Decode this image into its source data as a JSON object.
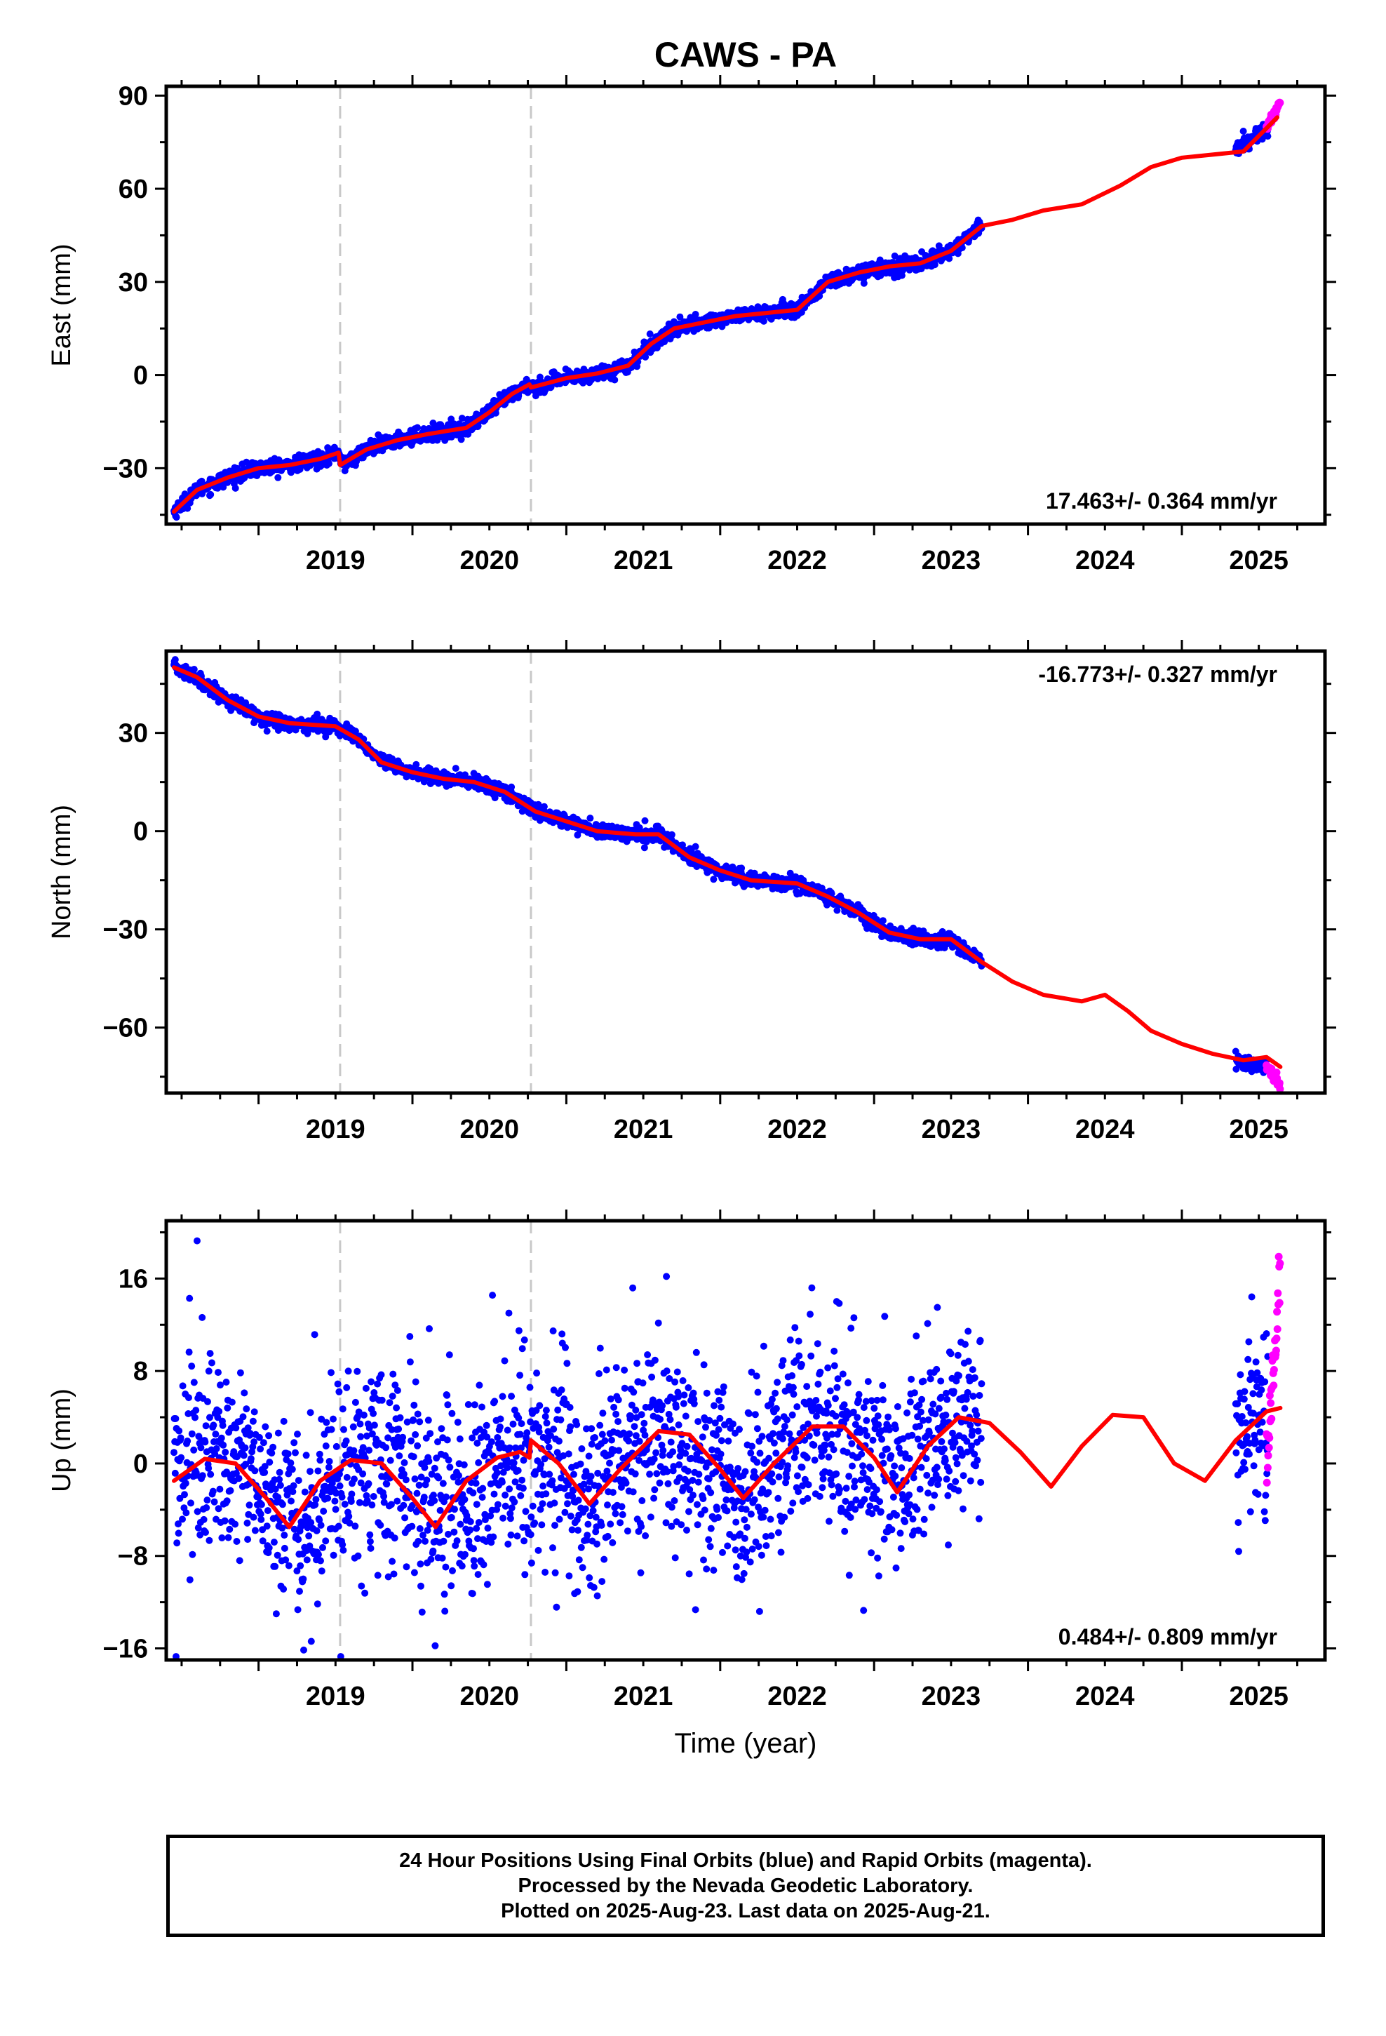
{
  "title": "CAWS - PA",
  "colors": {
    "final_orbits": "#0000ff",
    "rapid_orbits": "#ff00ff",
    "model": "#ff0000",
    "breaks": "#c8c8c8",
    "axis": "#000000"
  },
  "caption": {
    "line1": "24 Hour Positions Using Final Orbits (blue) and Rapid Orbits (magenta).",
    "line2": "Processed by the Nevada Geodetic Laboratory.",
    "line3": "Plotted on 2025-Aug-23. Last data on 2025-Aug-21."
  },
  "chart_data": [
    {
      "type": "scatter",
      "component": "East",
      "ylabel": "East (mm)",
      "xlabel": "",
      "xlim": [
        2018.4,
        2025.93
      ],
      "ylim": [
        -48,
        93
      ],
      "yticks": [
        -30,
        0,
        30,
        60,
        90
      ],
      "xticks": [
        2019,
        2020,
        2021,
        2022,
        2023,
        2024,
        2025
      ],
      "rate_label": "17.463+/- 0.364 mm/yr",
      "rate_position": "bottom-right",
      "grid": false,
      "breaks": [
        2019.53,
        2020.77
      ],
      "final_span": [
        2018.45,
        2023.7
      ],
      "rapid_span": [
        2025.55,
        2025.64
      ],
      "model": {
        "x": [
          2018.45,
          2018.6,
          2018.8,
          2019.0,
          2019.2,
          2019.4,
          2019.52,
          2019.53,
          2019.7,
          2019.9,
          2020.1,
          2020.35,
          2020.5,
          2020.65,
          2020.76,
          2020.77,
          2021.0,
          2021.2,
          2021.4,
          2021.55,
          2021.7,
          2021.9,
          2022.1,
          2022.3,
          2022.5,
          2022.7,
          2022.9,
          2023.1,
          2023.3,
          2023.5,
          2023.7,
          2023.9,
          2024.1,
          2024.35,
          2024.6,
          2024.8,
          2025.0,
          2025.2,
          2025.4,
          2025.62
        ],
        "y": [
          -44,
          -37,
          -33,
          -30,
          -29,
          -27,
          -25,
          -29,
          -24,
          -21,
          -19,
          -17,
          -12,
          -6,
          -3,
          -4,
          -1,
          0.5,
          3,
          10,
          15,
          17,
          19,
          20,
          21,
          30,
          33,
          35,
          36,
          40,
          48,
          50,
          53,
          55,
          61,
          67,
          70,
          71,
          72,
          83
        ]
      },
      "final": {
        "x": [
          2018.45,
          2018.6,
          2018.8,
          2019.0,
          2019.2,
          2019.4,
          2019.52,
          2019.55,
          2019.7,
          2019.9,
          2020.1,
          2020.35,
          2020.5,
          2020.65,
          2020.76,
          2020.8,
          2021.0,
          2021.2,
          2021.4,
          2021.55,
          2021.7,
          2021.9,
          2022.1,
          2022.3,
          2022.5,
          2022.7,
          2022.9,
          2023.1,
          2023.3,
          2023.5,
          2023.7,
          2025.35,
          2025.45,
          2025.55
        ],
        "y": [
          -44,
          -37,
          -33,
          -30,
          -29,
          -27,
          -25,
          -29,
          -24,
          -21,
          -19,
          -17,
          -12,
          -6,
          -3,
          -4,
          -1,
          0.5,
          3,
          10,
          15,
          17,
          19,
          20,
          21,
          30,
          33,
          35,
          36,
          40,
          48,
          73,
          76,
          79
        ]
      },
      "rapid": {
        "x": [
          2025.55,
          2025.6,
          2025.64
        ],
        "y": [
          80,
          84,
          88
        ]
      }
    },
    {
      "type": "scatter",
      "component": "North",
      "ylabel": "North (mm)",
      "xlabel": "",
      "xlim": [
        2018.4,
        2025.93
      ],
      "ylim": [
        -80,
        55
      ],
      "yticks": [
        -60,
        -30,
        0,
        30
      ],
      "xticks": [
        2019,
        2020,
        2021,
        2022,
        2023,
        2024,
        2025
      ],
      "rate_label": "-16.773+/- 0.327 mm/yr",
      "rate_position": "top-right",
      "grid": false,
      "breaks": [
        2019.53,
        2020.77
      ],
      "final_span": [
        2018.45,
        2023.7
      ],
      "rapid_span": [
        2025.55,
        2025.64
      ],
      "model": {
        "x": [
          2018.45,
          2018.6,
          2018.8,
          2019.0,
          2019.2,
          2019.5,
          2019.65,
          2019.8,
          2020.0,
          2020.2,
          2020.4,
          2020.6,
          2020.8,
          2021.0,
          2021.2,
          2021.45,
          2021.6,
          2021.8,
          2022.0,
          2022.2,
          2022.5,
          2022.7,
          2022.9,
          2023.1,
          2023.3,
          2023.5,
          2023.7,
          2023.9,
          2024.1,
          2024.35,
          2024.5,
          2024.65,
          2024.8,
          2025.0,
          2025.2,
          2025.4,
          2025.55,
          2025.64
        ],
        "y": [
          50,
          47,
          40,
          35,
          33,
          32,
          28,
          21,
          18,
          16,
          15,
          12,
          6,
          3,
          0,
          -1,
          -1,
          -8,
          -12,
          -15,
          -16,
          -20,
          -25,
          -31,
          -33,
          -33,
          -40,
          -46,
          -50,
          -52,
          -50,
          -55,
          -61,
          -65,
          -68,
          -70,
          -69,
          -72
        ]
      },
      "final": {
        "x": [
          2018.45,
          2018.6,
          2018.8,
          2019.0,
          2019.2,
          2019.5,
          2019.65,
          2019.8,
          2020.0,
          2020.2,
          2020.4,
          2020.6,
          2020.8,
          2021.0,
          2021.2,
          2021.45,
          2021.6,
          2021.8,
          2022.0,
          2022.2,
          2022.5,
          2022.7,
          2022.9,
          2023.1,
          2023.3,
          2023.5,
          2023.7,
          2025.35,
          2025.45,
          2025.55
        ],
        "y": [
          50,
          47,
          40,
          35,
          33,
          32,
          28,
          21,
          18,
          16,
          15,
          12,
          6,
          3,
          0,
          -1,
          -1,
          -8,
          -12,
          -15,
          -16,
          -20,
          -25,
          -31,
          -33,
          -33,
          -40,
          -70,
          -71,
          -72
        ]
      },
      "rapid": {
        "x": [
          2025.56,
          2025.6,
          2025.64
        ],
        "y": [
          -72,
          -75,
          -77
        ]
      }
    },
    {
      "type": "scatter",
      "component": "Up",
      "ylabel": "Up (mm)",
      "xlabel": "Time (year)",
      "xlim": [
        2018.4,
        2025.93
      ],
      "ylim": [
        -17,
        21
      ],
      "yticks": [
        -16,
        -8,
        0,
        8,
        16
      ],
      "xticks": [
        2019,
        2020,
        2021,
        2022,
        2023,
        2024,
        2025
      ],
      "rate_label": "0.484+/- 0.809 mm/yr",
      "rate_position": "bottom-right",
      "grid": false,
      "breaks": [
        2019.53,
        2020.77
      ],
      "final_span": [
        2018.45,
        2023.7
      ],
      "rapid_span": [
        2025.55,
        2025.64
      ],
      "model": {
        "x": [
          2018.45,
          2018.65,
          2018.85,
          2019.05,
          2019.2,
          2019.4,
          2019.6,
          2019.8,
          2020.0,
          2020.15,
          2020.35,
          2020.55,
          2020.7,
          2020.76,
          2020.77,
          2020.95,
          2021.15,
          2021.35,
          2021.6,
          2021.8,
          2022.0,
          2022.15,
          2022.35,
          2022.6,
          2022.8,
          2023.0,
          2023.15,
          2023.35,
          2023.55,
          2023.75,
          2023.95,
          2024.15,
          2024.35,
          2024.55,
          2024.75,
          2024.95,
          2025.15,
          2025.35,
          2025.55,
          2025.64
        ],
        "y": [
          -1.5,
          0.4,
          0,
          -3,
          -5.5,
          -1.5,
          0.3,
          0,
          -3,
          -5.5,
          -1.5,
          0.5,
          1,
          0.5,
          2,
          0,
          -3.5,
          -0.5,
          2.8,
          2.5,
          -0.5,
          -3,
          0,
          3.2,
          3.2,
          0.5,
          -2.5,
          1.5,
          4,
          3.5,
          1,
          -2,
          1.5,
          4.2,
          4,
          0,
          -1.5,
          2,
          4.5,
          4.8
        ]
      },
      "final": {
        "x": [
          2018.5,
          2018.7,
          2018.9,
          2019.1,
          2019.3,
          2019.5,
          2019.7,
          2019.9,
          2020.1,
          2020.3,
          2020.5,
          2020.7,
          2020.9,
          2021.1,
          2021.3,
          2021.5,
          2021.7,
          2021.9,
          2022.1,
          2022.3,
          2022.5,
          2022.7,
          2022.9,
          2023.1,
          2023.3,
          2023.5,
          2023.7,
          2025.35,
          2025.45,
          2025.55
        ],
        "y": [
          0,
          1,
          0.5,
          -3,
          -5,
          -1,
          0.5,
          0,
          -3,
          -5,
          -1,
          0.5,
          0,
          -3,
          -0.5,
          2.5,
          2.5,
          -0.5,
          -3,
          0,
          3,
          3,
          0.5,
          -2.5,
          1.5,
          4,
          3.5,
          2,
          3,
          4
        ]
      },
      "rapid": {
        "x": [
          2025.56,
          2025.58,
          2025.6,
          2025.62,
          2025.64
        ],
        "y": [
          1,
          5,
          9,
          13,
          15.5
        ]
      }
    }
  ]
}
